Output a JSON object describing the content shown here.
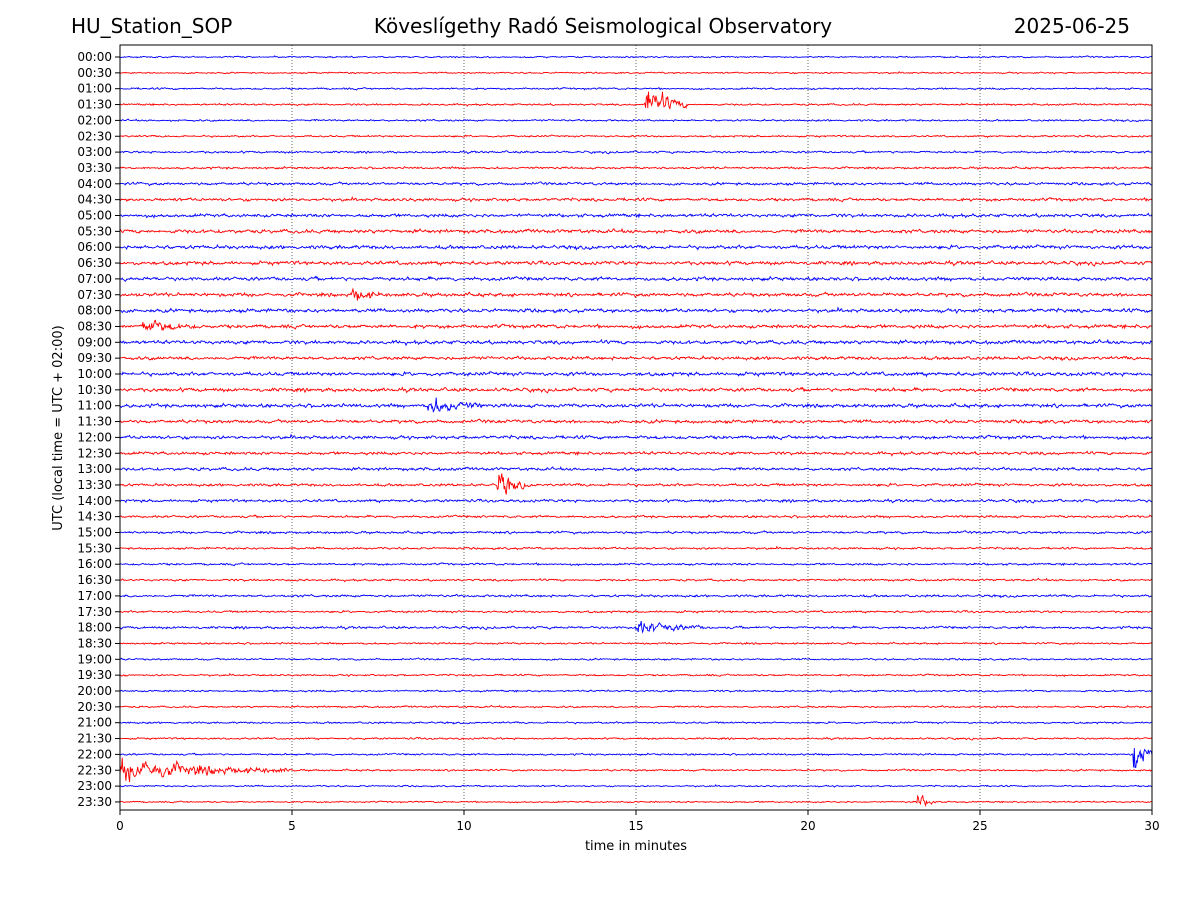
{
  "header": {
    "station": "HU_Station_SOP",
    "title": "Köveslígethy Radó Seismological Observatory",
    "date": "2025-06-25"
  },
  "chart_data": {
    "type": "line",
    "subtype": "helicorder",
    "xlabel": "time in minutes",
    "ylabel": "UTC (local time = UTC + 02:00)",
    "xlim": [
      0,
      30
    ],
    "x_ticks": [
      "0",
      "5",
      "10",
      "15",
      "20",
      "25",
      "30"
    ],
    "grid": "vertical dotted at every 5 minutes",
    "colors": [
      "#0000ff",
      "#ff0000"
    ],
    "rows": [
      "00:00",
      "00:30",
      "01:00",
      "01:30",
      "02:00",
      "02:30",
      "03:00",
      "03:30",
      "04:00",
      "04:30",
      "05:00",
      "05:30",
      "06:00",
      "06:30",
      "07:00",
      "07:30",
      "08:00",
      "08:30",
      "09:00",
      "09:30",
      "10:00",
      "10:30",
      "11:00",
      "11:30",
      "12:00",
      "12:30",
      "13:00",
      "13:30",
      "14:00",
      "14:30",
      "15:00",
      "15:30",
      "16:00",
      "16:30",
      "17:00",
      "17:30",
      "18:00",
      "18:30",
      "19:00",
      "19:30",
      "20:00",
      "20:30",
      "21:00",
      "21:30",
      "22:00",
      "22:30",
      "23:00",
      "23:30"
    ],
    "noise_level": [
      0.25,
      0.25,
      0.3,
      0.3,
      0.3,
      0.3,
      0.35,
      0.35,
      0.45,
      0.5,
      0.55,
      0.6,
      0.6,
      0.6,
      0.6,
      0.6,
      0.6,
      0.6,
      0.6,
      0.55,
      0.6,
      0.6,
      0.6,
      0.55,
      0.55,
      0.5,
      0.5,
      0.45,
      0.45,
      0.4,
      0.4,
      0.35,
      0.35,
      0.35,
      0.4,
      0.35,
      0.4,
      0.3,
      0.3,
      0.3,
      0.3,
      0.3,
      0.3,
      0.3,
      0.3,
      0.3,
      0.25,
      0.25
    ],
    "events": [
      {
        "row": "01:30",
        "minute": 15.3,
        "duration": 1.2,
        "amplitude": 1.7
      },
      {
        "row": "13:30",
        "minute": 11.0,
        "duration": 0.8,
        "amplitude": 1.3
      },
      {
        "row": "22:00",
        "minute": 29.5,
        "duration": 0.5,
        "amplitude": 2.0
      },
      {
        "row": "22:30",
        "minute": 0.0,
        "duration": 5.0,
        "amplitude": 1.0
      },
      {
        "row": "11:00",
        "minute": 9.0,
        "duration": 1.5,
        "amplitude": 0.8
      },
      {
        "row": "08:30",
        "minute": 0.7,
        "duration": 1.5,
        "amplitude": 0.6
      },
      {
        "row": "23:30",
        "minute": 23.2,
        "duration": 0.6,
        "amplitude": 0.7
      },
      {
        "row": "18:00",
        "minute": 15.0,
        "duration": 2.0,
        "amplitude": 0.6
      },
      {
        "row": "07:30",
        "minute": 6.8,
        "duration": 0.8,
        "amplitude": 0.6
      }
    ]
  }
}
